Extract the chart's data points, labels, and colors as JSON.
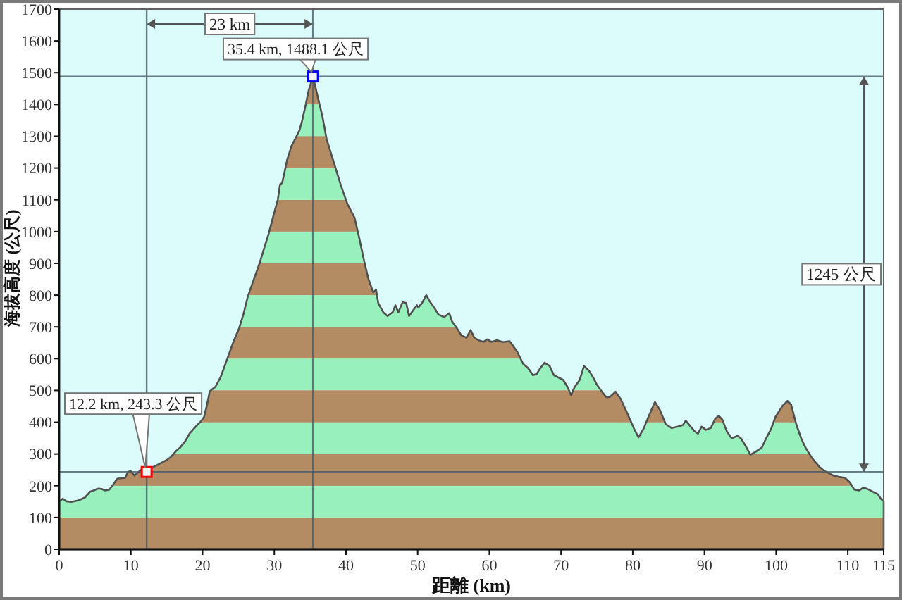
{
  "chart_data": {
    "type": "area",
    "xlabel": "距離 (km)",
    "ylabel": "海拔高度 (公尺)",
    "xlim": [
      0,
      115
    ],
    "ylim": [
      0,
      1700
    ],
    "xticks": [
      0,
      10,
      20,
      30,
      40,
      50,
      60,
      70,
      80,
      90,
      100,
      110,
      115
    ],
    "yticks": [
      0,
      100,
      200,
      300,
      400,
      500,
      600,
      700,
      800,
      900,
      1000,
      1100,
      1200,
      1300,
      1400,
      1500,
      1600,
      1700
    ],
    "series": [
      {
        "color": "#505050",
        "x": [
          0,
          0.5,
          1.0,
          1.7,
          2.7,
          3.6,
          4.3,
          4.8,
          5.4,
          5.9,
          6.4,
          7.0,
          7.5,
          8.1,
          8.7,
          9.2,
          9.6,
          10.0,
          10.5,
          10.9,
          11.4,
          12.2,
          13.1,
          14.0,
          15.0,
          15.6,
          16.3,
          16.9,
          17.6,
          18.2,
          19.2,
          19.7,
          20.2,
          20.6,
          21.0,
          21.8,
          22.5,
          23.1,
          23.8,
          24.4,
          25.1,
          25.7,
          26.3,
          27.2,
          27.9,
          28.5,
          29.2,
          29.8,
          30.5,
          30.8,
          31.1,
          31.8,
          32.4,
          32.9,
          33.5,
          33.9,
          34.4,
          34.8,
          35.4,
          36.0,
          36.7,
          37.3,
          38.3,
          39.3,
          40.2,
          41.2,
          41.8,
          42.5,
          43.1,
          43.8,
          44.2,
          44.5,
          45.2,
          45.8,
          46.5,
          46.9,
          47.3,
          47.9,
          48.4,
          48.8,
          49.4,
          49.9,
          50.1,
          50.6,
          51.2,
          51.6,
          52.3,
          52.9,
          53.7,
          54.4,
          54.8,
          55.5,
          56.1,
          56.8,
          57.4,
          57.9,
          58.5,
          59.2,
          59.7,
          60.3,
          61.1,
          61.9,
          62.8,
          63.0,
          63.9,
          64.7,
          65.4,
          66.1,
          66.6,
          67.1,
          67.7,
          68.4,
          69.0,
          69.7,
          70.3,
          70.9,
          71.4,
          71.9,
          72.6,
          73.2,
          73.9,
          74.5,
          75.0,
          75.7,
          76.3,
          76.8,
          77.6,
          78.3,
          79.2,
          80.2,
          80.8,
          81.5,
          82.3,
          83.1,
          83.8,
          84.6,
          85.4,
          86.3,
          87.0,
          87.4,
          87.9,
          88.6,
          89.1,
          89.6,
          90.2,
          90.9,
          91.5,
          92.0,
          92.5,
          93.1,
          93.8,
          94.6,
          95.1,
          95.7,
          96.4,
          97.0,
          98.0,
          98.6,
          99.3,
          99.9,
          100.9,
          101.6,
          102.1,
          102.8,
          103.5,
          104.1,
          104.9,
          105.4,
          106.1,
          106.7,
          107.4,
          108.0,
          108.7,
          109.6,
          110.3,
          110.9,
          111.6,
          112.2,
          112.9,
          113.5,
          114.2,
          114.6,
          115
        ],
        "values": [
          150,
          159,
          151,
          149,
          154,
          163,
          181,
          185,
          191,
          190,
          185,
          188,
          203,
          222,
          224,
          225,
          244,
          246,
          232,
          240,
          250,
          243.3,
          259,
          269,
          281,
          291,
          309,
          321,
          341,
          365,
          390,
          401,
          416,
          453,
          497,
          512,
          541,
          578,
          622,
          659,
          696,
          740,
          795,
          853,
          897,
          941,
          992,
          1043,
          1101,
          1148,
          1153,
          1226,
          1269,
          1291,
          1318,
          1350,
          1401,
          1445,
          1488.1,
          1430,
          1364,
          1291,
          1218,
          1145,
          1087,
          1043,
          985,
          911,
          853,
          809,
          817,
          775,
          746,
          734,
          746,
          768,
          746,
          778,
          775,
          734,
          753,
          768,
          761,
          775,
          800,
          783,
          761,
          739,
          731,
          743,
          717,
          695,
          673,
          666,
          690,
          666,
          658,
          653,
          661,
          653,
          658,
          652,
          655,
          650,
          621,
          584,
          570,
          548,
          552,
          570,
          587,
          577,
          548,
          540,
          533,
          511,
          485,
          511,
          533,
          577,
          562,
          540,
          518,
          496,
          479,
          479,
          496,
          474,
          430,
          379,
          352,
          379,
          423,
          464,
          438,
          394,
          382,
          386,
          391,
          405,
          391,
          372,
          364,
          386,
          376,
          382,
          411,
          420,
          408,
          372,
          349,
          357,
          349,
          327,
          298,
          305,
          320,
          349,
          379,
          416,
          452,
          467,
          455,
          394,
          349,
          320,
          291,
          276,
          258,
          247,
          239,
          232,
          228,
          225,
          210,
          188,
          185,
          195,
          188,
          181,
          173,
          159,
          151
        ]
      },
      {
        "type": "scatter",
        "marker": "square",
        "x": [
          12.2,
          35.4
        ],
        "values": [
          243.3,
          1488.1
        ],
        "colors": [
          "#ff0000",
          "#0000ff"
        ]
      }
    ],
    "bands": [
      {
        "axis": "y",
        "from": 0,
        "to": 100,
        "color": "#b48c64"
      },
      {
        "axis": "y",
        "from": 100,
        "to": 200,
        "color": "#98f0bc"
      },
      {
        "axis": "y",
        "from": 200,
        "to": 300,
        "color": "#b48c64"
      },
      {
        "axis": "y",
        "from": 300,
        "to": 400,
        "color": "#98f0bc"
      },
      {
        "axis": "y",
        "from": 400,
        "to": 500,
        "color": "#b48c64"
      },
      {
        "axis": "y",
        "from": 500,
        "to": 600,
        "color": "#98f0bc"
      },
      {
        "axis": "y",
        "from": 600,
        "to": 700,
        "color": "#b48c64"
      },
      {
        "axis": "y",
        "from": 700,
        "to": 800,
        "color": "#98f0bc"
      },
      {
        "axis": "y",
        "from": 800,
        "to": 900,
        "color": "#b48c64"
      },
      {
        "axis": "y",
        "from": 900,
        "to": 1000,
        "color": "#98f0bc"
      },
      {
        "axis": "y",
        "from": 1000,
        "to": 1100,
        "color": "#b48c64"
      },
      {
        "axis": "y",
        "from": 1100,
        "to": 1200,
        "color": "#98f0bc"
      },
      {
        "axis": "y",
        "from": 1200,
        "to": 1300,
        "color": "#b48c64"
      },
      {
        "axis": "y",
        "from": 1300,
        "to": 1400,
        "color": "#98f0bc"
      },
      {
        "axis": "y",
        "from": 1400,
        "to": 1500,
        "color": "#b48c64"
      }
    ],
    "ref_lines": [
      {
        "axis": "x",
        "value": 12.2,
        "color": "#4a5c68"
      },
      {
        "axis": "x",
        "value": 35.4,
        "color": "#4a5c68"
      },
      {
        "axis": "y",
        "value": 243.3,
        "color": "#4a5c68"
      },
      {
        "axis": "y",
        "value": 1488.1,
        "color": "#4a5c68"
      }
    ],
    "annotations": [
      {
        "text": "12.2 km, 243.3 公尺",
        "x": 12.2,
        "y": 243.3
      },
      {
        "text": "35.4 km, 1488.1 公尺",
        "x": 35.4,
        "y": 1488.1
      },
      "23 km",
      "1245 公尺"
    ]
  }
}
